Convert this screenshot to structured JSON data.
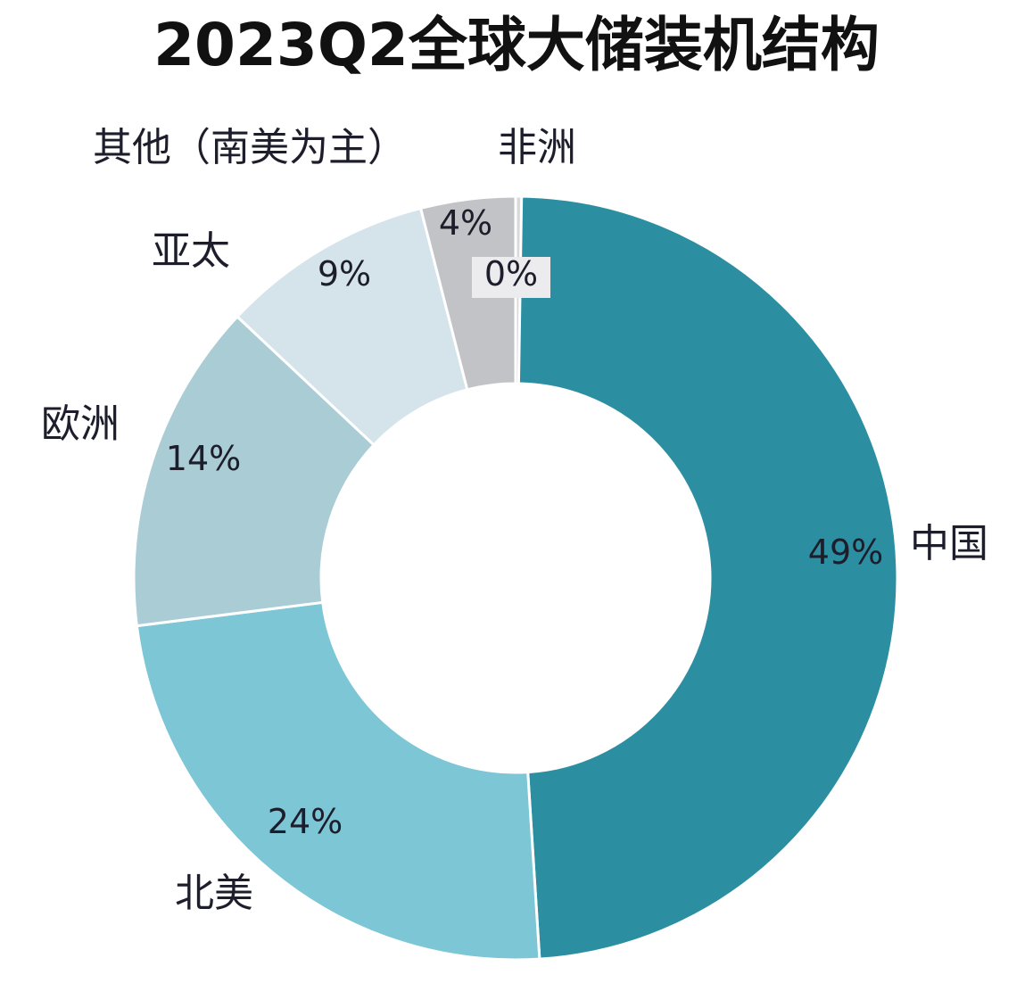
{
  "chart_data": {
    "type": "pie",
    "variant": "donut",
    "title": "2023Q2全球大储装机结构",
    "categories": [
      "中国",
      "北美",
      "欧洲",
      "亚太",
      "其他（南美为主）",
      "非洲"
    ],
    "values": [
      49,
      24,
      14,
      9,
      4,
      0
    ],
    "value_labels": [
      "49%",
      "24%",
      "14%",
      "9%",
      "4%",
      "0%"
    ],
    "colors": [
      "#2b8fa1",
      "#7cc6d6",
      "#a9ccd5",
      "#d5e3eb",
      "#c2c3c6",
      "#d9d9dc"
    ],
    "unit": "%",
    "legend": "none (labels placed beside slices)"
  }
}
